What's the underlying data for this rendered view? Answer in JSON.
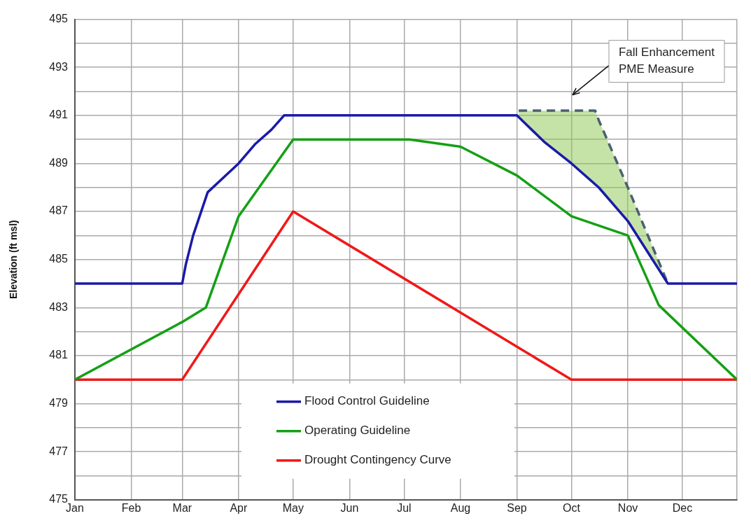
{
  "chart_data": {
    "type": "line",
    "ylabel": "Elevation (ft msl)",
    "xlim": [
      "--01-01",
      "--12-31"
    ],
    "xticks": [
      {
        "value": "--01-01",
        "label": "Jan"
      },
      {
        "value": "--02-01",
        "label": "Feb"
      },
      {
        "value": "--03-01",
        "label": "Mar"
      },
      {
        "value": "--04-01",
        "label": "Apr"
      },
      {
        "value": "--05-01",
        "label": "May"
      },
      {
        "value": "--06-01",
        "label": "Jun"
      },
      {
        "value": "--07-01",
        "label": "Jul"
      },
      {
        "value": "--08-01",
        "label": "Aug"
      },
      {
        "value": "--09-01",
        "label": "Sep"
      },
      {
        "value": "--10-01",
        "label": "Oct"
      },
      {
        "value": "--11-01",
        "label": "Nov"
      },
      {
        "value": "--12-01",
        "label": "Dec"
      },
      {
        "value": "--12-31",
        "label": null
      }
    ],
    "ylim": [
      475,
      495
    ],
    "yticks": [
      475,
      {
        "value": 476,
        "label": null
      },
      477,
      {
        "value": 478,
        "label": null
      },
      479,
      {
        "value": 480,
        "label": null
      },
      481,
      {
        "value": 482,
        "label": null
      },
      483,
      {
        "value": 484,
        "label": null
      },
      485,
      {
        "value": 486,
        "label": null
      },
      487,
      {
        "value": 488,
        "label": null
      },
      489,
      {
        "value": 490,
        "label": null
      },
      491,
      {
        "value": 492,
        "label": null
      },
      493,
      {
        "value": 494,
        "label": null
      },
      495
    ],
    "grid": true,
    "legend": "bottom",
    "marker": "none",
    "line_style": "solid",
    "series": [
      {
        "name": "Flood Control Guideline",
        "color": "#1a1aa8",
        "x": [
          "--01-01",
          "--03-01",
          "--03-03",
          "--03-07",
          "--03-15",
          "--04-01",
          "--04-10",
          "--04-19",
          "--04-26",
          "--09-01",
          "--09-16",
          "--10-01",
          "--10-16",
          "--11-01",
          "--11-23",
          "--12-31"
        ],
        "values": [
          484,
          484,
          484.8,
          486,
          487.8,
          489,
          489.8,
          490.4,
          491,
          491,
          489.9,
          489,
          488,
          486.6,
          484,
          484
        ]
      },
      {
        "name": "Operating Guideline",
        "color": "#14a014",
        "x": [
          "--01-01",
          "--03-01",
          "--03-14",
          "--04-01",
          "--05-01",
          "--07-04",
          "--08-01",
          "--09-01",
          "--10-01",
          "--11-01",
          "--11-18",
          "--12-31"
        ],
        "values": [
          480,
          482.4,
          483,
          486.8,
          490,
          490,
          489.7,
          488.5,
          486.8,
          486,
          483.1,
          480
        ]
      },
      {
        "name": "Drought Contingency Curve",
        "color": "#f01818",
        "x": [
          "--01-01",
          "--03-01",
          "--05-01",
          "--10-01",
          "--12-31"
        ],
        "values": [
          480,
          480,
          487,
          480,
          480
        ]
      },
      {
        "color": "#4a6070",
        "line_style": "dashed",
        "x": [
          "--09-02",
          "--09-16",
          "--10-01",
          "--10-14",
          "--10-16",
          "--11-01",
          "--11-23"
        ],
        "values": [
          491.2,
          491.2,
          491.2,
          491.2,
          490.8,
          488,
          484
        ],
        "lower": [
          491,
          489.9,
          489,
          488.1,
          488,
          486.6,
          484
        ],
        "upper": [
          491.2,
          491.2,
          491.2,
          491.2,
          490.8,
          488,
          484
        ]
      }
    ],
    "annotations": [
      "Fall Enhancement\nPME Measure"
    ]
  }
}
